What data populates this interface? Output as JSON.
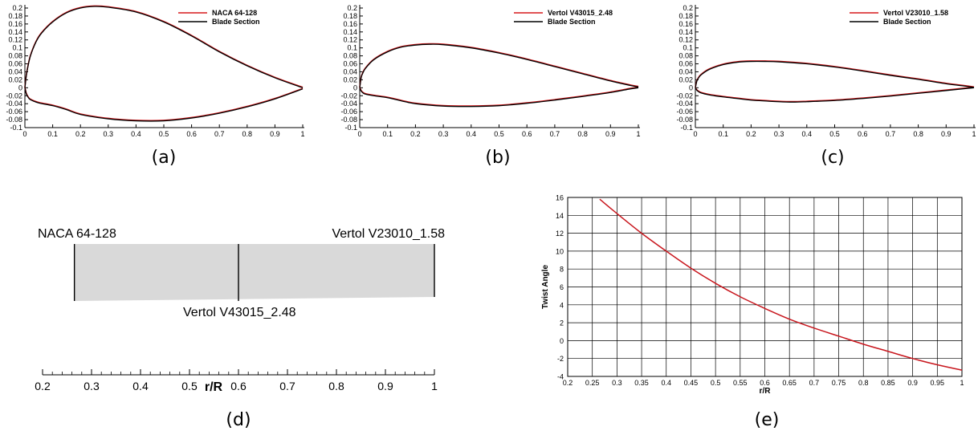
{
  "chart_data": [
    {
      "id": "a",
      "type": "line",
      "caption": "(a)",
      "xlim": [
        0,
        1
      ],
      "ylim": [
        -0.1,
        0.2
      ],
      "xticks": [
        "0",
        "0.1",
        "0.2",
        "0.3",
        "0.4",
        "0.5",
        "0.6",
        "0.7",
        "0.8",
        "0.9",
        "1"
      ],
      "yticks": [
        "0.2",
        "0.18",
        "0.16",
        "0.14",
        "0.12",
        "0.1",
        "0.08",
        "0.06",
        "0.04",
        "0.02",
        "0",
        "-0.02",
        "-0.04",
        "-0.06",
        "-0.08",
        "-0.1"
      ],
      "legend_position": "top-right",
      "series": [
        {
          "name": "NACA 64-128",
          "color": "#d7191c"
        },
        {
          "name": "Blade Section",
          "color": "#000000"
        }
      ],
      "upper": {
        "x": [
          0,
          0.005,
          0.01,
          0.02,
          0.04,
          0.06,
          0.1,
          0.15,
          0.2,
          0.25,
          0.3,
          0.4,
          0.5,
          0.6,
          0.7,
          0.8,
          0.9,
          1.0
        ],
        "y": [
          0,
          0.03,
          0.05,
          0.08,
          0.115,
          0.137,
          0.165,
          0.188,
          0.2,
          0.204,
          0.202,
          0.19,
          0.165,
          0.13,
          0.09,
          0.055,
          0.025,
          0.0
        ]
      },
      "lower": {
        "x": [
          0,
          0.005,
          0.01,
          0.02,
          0.05,
          0.1,
          0.15,
          0.2,
          0.3,
          0.4,
          0.5,
          0.6,
          0.7,
          0.8,
          0.9,
          1.0
        ],
        "y": [
          0,
          -0.015,
          -0.022,
          -0.03,
          -0.038,
          -0.045,
          -0.055,
          -0.067,
          -0.078,
          -0.083,
          -0.083,
          -0.076,
          -0.064,
          -0.048,
          -0.028,
          -0.003
        ]
      }
    },
    {
      "id": "b",
      "type": "line",
      "caption": "(b)",
      "xlim": [
        0,
        1
      ],
      "ylim": [
        -0.1,
        0.2
      ],
      "xticks": [
        "0",
        "0.1",
        "0.2",
        "0.3",
        "0.4",
        "0.5",
        "0.6",
        "0.7",
        "0.8",
        "0.9",
        "1"
      ],
      "yticks": [
        "0.2",
        "0.18",
        "0.16",
        "0.14",
        "0.12",
        "0.1",
        "0.08",
        "0.06",
        "0.04",
        "0.02",
        "0",
        "-0.02",
        "-0.04",
        "-0.06",
        "-0.08",
        "-0.1"
      ],
      "legend_position": "top-right",
      "series": [
        {
          "name": "Vertol V43015_2.48",
          "color": "#d7191c"
        },
        {
          "name": "Blade Section",
          "color": "#000000"
        }
      ],
      "upper": {
        "x": [
          0,
          0.005,
          0.01,
          0.02,
          0.05,
          0.1,
          0.15,
          0.2,
          0.25,
          0.3,
          0.4,
          0.5,
          0.6,
          0.7,
          0.8,
          0.9,
          0.97,
          1.0
        ],
        "y": [
          0,
          0.025,
          0.035,
          0.048,
          0.07,
          0.09,
          0.102,
          0.107,
          0.109,
          0.108,
          0.1,
          0.087,
          0.071,
          0.053,
          0.035,
          0.017,
          0.006,
          0.002
        ]
      },
      "lower": {
        "x": [
          0,
          0.005,
          0.01,
          0.02,
          0.05,
          0.1,
          0.15,
          0.2,
          0.3,
          0.4,
          0.5,
          0.6,
          0.7,
          0.8,
          0.9,
          0.97,
          1.0
        ],
        "y": [
          0,
          -0.008,
          -0.012,
          -0.016,
          -0.02,
          -0.025,
          -0.033,
          -0.04,
          -0.046,
          -0.047,
          -0.045,
          -0.039,
          -0.031,
          -0.022,
          -0.012,
          -0.003,
          0.0
        ]
      }
    },
    {
      "id": "c",
      "type": "line",
      "caption": "(c)",
      "xlim": [
        0,
        1
      ],
      "ylim": [
        -0.1,
        0.2
      ],
      "xticks": [
        "0",
        "0.1",
        "0.2",
        "0.3",
        "0.4",
        "0.5",
        "0.6",
        "0.7",
        "0.8",
        "0.9",
        "1"
      ],
      "yticks": [
        "0.2",
        "0.18",
        "0.16",
        "0.14",
        "0.12",
        "0.1",
        "0.08",
        "0.06",
        "0.04",
        "0.02",
        "0",
        "-0.02",
        "-0.04",
        "-0.06",
        "-0.08",
        "-0.1"
      ],
      "legend_position": "top-right",
      "series": [
        {
          "name": "Vertol V23010_1.58",
          "color": "#d7191c"
        },
        {
          "name": "Blade Section",
          "color": "#000000"
        }
      ],
      "upper": {
        "x": [
          0,
          0.005,
          0.01,
          0.02,
          0.05,
          0.1,
          0.15,
          0.2,
          0.25,
          0.3,
          0.4,
          0.5,
          0.6,
          0.7,
          0.8,
          0.9,
          0.97,
          1.0
        ],
        "y": [
          0,
          0.016,
          0.023,
          0.032,
          0.046,
          0.058,
          0.064,
          0.066,
          0.066,
          0.065,
          0.06,
          0.052,
          0.042,
          0.031,
          0.021,
          0.01,
          0.004,
          0.001
        ]
      },
      "lower": {
        "x": [
          0,
          0.005,
          0.01,
          0.02,
          0.05,
          0.1,
          0.15,
          0.2,
          0.3,
          0.35,
          0.4,
          0.5,
          0.6,
          0.7,
          0.8,
          0.9,
          0.97,
          1.0
        ],
        "y": [
          0,
          -0.006,
          -0.009,
          -0.013,
          -0.018,
          -0.023,
          -0.027,
          -0.031,
          -0.035,
          -0.036,
          -0.035,
          -0.032,
          -0.027,
          -0.021,
          -0.014,
          -0.007,
          -0.002,
          0.0
        ]
      }
    },
    {
      "id": "d",
      "type": "diagram",
      "caption": "(d)",
      "xlabel": "r/R",
      "xlim": [
        0.2,
        1.0
      ],
      "xticks": [
        "0.2",
        "0.3",
        "0.4",
        "0.5",
        "0.6",
        "0.7",
        "0.8",
        "0.9",
        "1"
      ],
      "blade_root": 0.265,
      "blade_tip": 1.0,
      "stations": [
        {
          "r": 0.265,
          "label": "NACA 64-128"
        },
        {
          "r": 0.6,
          "label": "Vertol V43015_2.48"
        },
        {
          "r": 1.0,
          "label": "Vertol V23010_1.58"
        }
      ]
    },
    {
      "id": "e",
      "type": "line",
      "caption": "(e)",
      "xlabel": "r/R",
      "ylabel": "Twist Angle",
      "xlim": [
        0.2,
        1.0
      ],
      "ylim": [
        -4,
        16
      ],
      "grid": true,
      "xticks": [
        "0.2",
        "0.25",
        "0.3",
        "0.35",
        "0.4",
        "0.45",
        "0.5",
        "0.55",
        "0.6",
        "0.65",
        "0.7",
        "0.75",
        "0.8",
        "0.85",
        "0.9",
        "0.95",
        "1"
      ],
      "yticks": [
        "16",
        "14",
        "12",
        "10",
        "8",
        "6",
        "4",
        "2",
        "0",
        "-2",
        "-4"
      ],
      "series": [
        {
          "color": "#c8161d",
          "x": [
            0.265,
            0.3,
            0.35,
            0.4,
            0.45,
            0.5,
            0.55,
            0.6,
            0.65,
            0.7,
            0.75,
            0.8,
            0.85,
            0.9,
            0.95,
            1.0
          ],
          "y": [
            15.8,
            14.2,
            12.0,
            10.0,
            8.1,
            6.4,
            4.9,
            3.6,
            2.4,
            1.4,
            0.5,
            -0.4,
            -1.2,
            -2.0,
            -2.7,
            -3.3
          ]
        }
      ]
    }
  ]
}
